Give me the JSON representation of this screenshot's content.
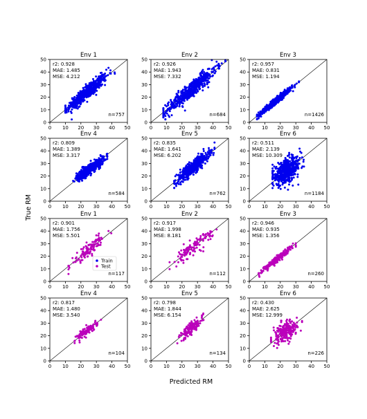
{
  "figure": {
    "xlabel": "Predicted RM",
    "ylabel": "True RM",
    "colors": {
      "train": "#0000ee",
      "test": "#bb00bb"
    },
    "legend": {
      "placement": "lower-right",
      "entries": [
        "Train",
        "Test"
      ]
    }
  },
  "chart_data": [
    {
      "type": "scatter",
      "title": "Env 1",
      "series_kind": "train",
      "stats": {
        "r2": "r2: 0.928",
        "mae": "MAE: 1.485",
        "mse": "MSE: 4.212"
      },
      "n_label": "n=757",
      "n": 757,
      "pred_center": 24,
      "pred_range": [
        10,
        42
      ],
      "spread": 2.8,
      "slope": 1.0,
      "xlim": [
        0,
        50
      ],
      "ylim": [
        0,
        50
      ],
      "xticks": [
        "0",
        "10",
        "20",
        "30",
        "40",
        "50"
      ],
      "yticks": [
        "0",
        "10",
        "20",
        "30",
        "40",
        "50"
      ]
    },
    {
      "type": "scatter",
      "title": "Env 2",
      "series_kind": "train",
      "stats": {
        "r2": "r2: 0.926",
        "mae": "MAE: 1.943",
        "mse": "MSE: 7.332"
      },
      "n_label": "n=684",
      "n": 684,
      "pred_center": 26,
      "pred_range": [
        8,
        48
      ],
      "spread": 3.2,
      "slope": 1.05,
      "xlim": [
        0,
        50
      ],
      "ylim": [
        0,
        50
      ],
      "xticks": [
        "0",
        "10",
        "20",
        "30",
        "40",
        "50"
      ],
      "yticks": [
        "0",
        "10",
        "20",
        "30",
        "40",
        "50"
      ]
    },
    {
      "type": "scatter",
      "title": "Env 3",
      "series_kind": "train",
      "stats": {
        "r2": "r2: 0.957",
        "mae": "MAE: 0.831",
        "mse": "MSE: 1.194"
      },
      "n_label": "n=1426",
      "n": 1426,
      "pred_center": 17,
      "pred_range": [
        5,
        32
      ],
      "spread": 1.2,
      "slope": 1.0,
      "xlim": [
        0,
        50
      ],
      "ylim": [
        0,
        50
      ],
      "xticks": [
        "0",
        "10",
        "20",
        "30",
        "40",
        "50"
      ],
      "yticks": [
        "0",
        "10",
        "20",
        "30",
        "40",
        "50"
      ]
    },
    {
      "type": "scatter",
      "title": "Env 4",
      "series_kind": "train",
      "stats": {
        "r2": "r2: 0.809",
        "mae": "MAE: 1.389",
        "mse": "MSE: 3.317"
      },
      "n_label": "n=584",
      "n": 584,
      "pred_center": 26,
      "pred_range": [
        15,
        37
      ],
      "spread": 2.0,
      "slope": 0.85,
      "xlim": [
        0,
        50
      ],
      "ylim": [
        0,
        50
      ],
      "xticks": [
        "0",
        "10",
        "20",
        "30",
        "40",
        "50"
      ],
      "yticks": [
        "0",
        "10",
        "20",
        "30",
        "40",
        "50"
      ]
    },
    {
      "type": "scatter",
      "title": "Env 5",
      "series_kind": "train",
      "stats": {
        "r2": "r2: 0.835",
        "mae": "MAE: 1.641",
        "mse": "MSE: 6.202"
      },
      "n_label": "n=762",
      "n": 762,
      "pred_center": 27,
      "pred_range": [
        15,
        41
      ],
      "spread": 2.6,
      "slope": 1.0,
      "xlim": [
        0,
        50
      ],
      "ylim": [
        0,
        50
      ],
      "xticks": [
        "0",
        "10",
        "20",
        "30",
        "40",
        "50"
      ],
      "yticks": [
        "0",
        "10",
        "20",
        "30",
        "40",
        "50"
      ]
    },
    {
      "type": "scatter",
      "title": "Env 6",
      "series_kind": "train",
      "stats": {
        "r2": "r2: 0.511",
        "mae": "MAE: 2.139",
        "mse": "MSE: 10.309"
      },
      "n_label": "n=1184",
      "n": 1184,
      "pred_center": 24,
      "pred_range": [
        15,
        38
      ],
      "spread": 4.5,
      "slope": 0.6,
      "xlim": [
        0,
        50
      ],
      "ylim": [
        0,
        50
      ],
      "xticks": [
        "0",
        "10",
        "20",
        "30",
        "40",
        "50"
      ],
      "yticks": [
        "0",
        "10",
        "20",
        "30",
        "40",
        "50"
      ]
    },
    {
      "type": "scatter",
      "title": "Env 1",
      "series_kind": "test",
      "stats": {
        "r2": "r2: 0.901",
        "mae": "MAE: 1.756",
        "mse": "MSE: 5.501"
      },
      "n_label": "n=117",
      "n": 117,
      "pred_center": 25,
      "pred_range": [
        12,
        40
      ],
      "spread": 2.6,
      "slope": 1.0,
      "xlim": [
        0,
        50
      ],
      "ylim": [
        0,
        50
      ],
      "xticks": [
        "0",
        "10",
        "20",
        "30",
        "40",
        "50"
      ],
      "yticks": [
        "0",
        "10",
        "20",
        "30",
        "40",
        "50"
      ],
      "legend": true
    },
    {
      "type": "scatter",
      "title": "Env 2",
      "series_kind": "test",
      "stats": {
        "r2": "r2: 0.917",
        "mae": "MAE: 1.998",
        "mse": "MSE: 8.181"
      },
      "n_label": "n=112",
      "n": 112,
      "pred_center": 27,
      "pred_range": [
        12,
        45
      ],
      "spread": 2.8,
      "slope": 1.0,
      "xlim": [
        0,
        50
      ],
      "ylim": [
        0,
        50
      ],
      "xticks": [
        "0",
        "10",
        "20",
        "30",
        "40",
        "50"
      ],
      "yticks": [
        "0",
        "10",
        "20",
        "30",
        "40",
        "50"
      ]
    },
    {
      "type": "scatter",
      "title": "Env 3",
      "series_kind": "test",
      "stats": {
        "r2": "r2: 0.946",
        "mae": "MAE: 0.935",
        "mse": "MSE: 1.356"
      },
      "n_label": "n=260",
      "n": 260,
      "pred_center": 18,
      "pred_range": [
        6,
        30
      ],
      "spread": 1.2,
      "slope": 1.0,
      "xlim": [
        0,
        50
      ],
      "ylim": [
        0,
        50
      ],
      "xticks": [
        "0",
        "10",
        "20",
        "30",
        "40",
        "50"
      ],
      "yticks": [
        "0",
        "10",
        "20",
        "30",
        "40",
        "50"
      ]
    },
    {
      "type": "scatter",
      "title": "Env 4",
      "series_kind": "test",
      "stats": {
        "r2": "r2: 0.817",
        "mae": "MAE: 1.480",
        "mse": "MSE: 3.540"
      },
      "n_label": "n=104",
      "n": 104,
      "pred_center": 24,
      "pred_range": [
        16,
        33
      ],
      "spread": 1.8,
      "slope": 0.9,
      "xlim": [
        0,
        50
      ],
      "ylim": [
        0,
        50
      ],
      "xticks": [
        "0",
        "10",
        "20",
        "30",
        "40",
        "50"
      ],
      "yticks": [
        "0",
        "10",
        "20",
        "30",
        "40",
        "50"
      ]
    },
    {
      "type": "scatter",
      "title": "Env 5",
      "series_kind": "test",
      "stats": {
        "r2": "r2: 0.798",
        "mae": "MAE: 1.844",
        "mse": "MSE: 6.154"
      },
      "n_label": "n=134",
      "n": 134,
      "pred_center": 26,
      "pred_range": [
        17,
        36
      ],
      "spread": 2.4,
      "slope": 1.0,
      "xlim": [
        0,
        50
      ],
      "ylim": [
        0,
        50
      ],
      "xticks": [
        "0",
        "10",
        "20",
        "30",
        "40",
        "50"
      ],
      "yticks": [
        "0",
        "10",
        "20",
        "30",
        "40",
        "50"
      ]
    },
    {
      "type": "scatter",
      "title": "Env 6",
      "series_kind": "test",
      "stats": {
        "r2": "r2: 0.430",
        "mae": "MAE: 2.625",
        "mse": "MSE: 12.999"
      },
      "n_label": "n=226",
      "n": 226,
      "pred_center": 23,
      "pred_range": [
        14,
        34
      ],
      "spread": 3.8,
      "slope": 0.6,
      "xlim": [
        0,
        50
      ],
      "ylim": [
        0,
        50
      ],
      "xticks": [
        "0",
        "10",
        "20",
        "30",
        "40",
        "50"
      ],
      "yticks": [
        "0",
        "10",
        "20",
        "30",
        "40",
        "50"
      ]
    }
  ]
}
